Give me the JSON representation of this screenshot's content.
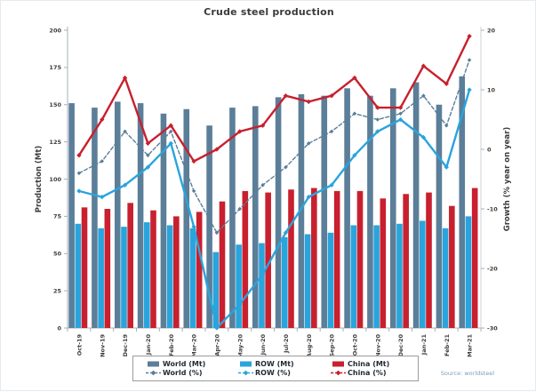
{
  "title": "Crude steel production",
  "source_note": "Source: worldsteel",
  "chart_data": {
    "type": "combo-bar-line",
    "grid": false,
    "legend_position": "bottom",
    "categories": [
      "Oct-19",
      "Nov-19",
      "Dec-19",
      "Jan-20",
      "Feb-20",
      "Mar-20",
      "Apr-20",
      "May-20",
      "Jun-20",
      "Jul-20",
      "Aug-20",
      "Sep-20",
      "Oct-20",
      "Nov-20",
      "Dec-20",
      "Jan-21",
      "Feb-21",
      "Mar-21"
    ],
    "axes": {
      "left": {
        "label": "Production (Mt)",
        "min": 0,
        "max": 200,
        "step": 25
      },
      "right": {
        "label": "Growth (% year on year)",
        "min": -30,
        "max": 20,
        "step": 10
      }
    },
    "series": [
      {
        "name": "World (Mt)",
        "type": "bar",
        "axis": "left",
        "color": "#5b7e99",
        "values": [
          151,
          148,
          152,
          151,
          144,
          147,
          136,
          148,
          149,
          155,
          157,
          156,
          161,
          156,
          161,
          165,
          150,
          169
        ]
      },
      {
        "name": "ROW (Mt)",
        "type": "bar",
        "axis": "left",
        "color": "#2aa4dc",
        "values": [
          70,
          67,
          68,
          71,
          69,
          67,
          51,
          56,
          57,
          61,
          63,
          64,
          69,
          69,
          70,
          72,
          67,
          75
        ]
      },
      {
        "name": "China (Mt)",
        "type": "bar",
        "axis": "left",
        "color": "#c8202e",
        "values": [
          81,
          80,
          84,
          79,
          75,
          78,
          85,
          92,
          91,
          93,
          94,
          92,
          92,
          87,
          90,
          91,
          82,
          94
        ]
      },
      {
        "name": "World (%)",
        "type": "line",
        "axis": "right",
        "style": "dashed",
        "color": "#5b7e99",
        "values": [
          -4,
          -2,
          3,
          -1,
          3,
          -7,
          -14,
          -10,
          -6,
          -3,
          1,
          3,
          6,
          5,
          6,
          9,
          4,
          15
        ]
      },
      {
        "name": "ROW (%)",
        "type": "line",
        "axis": "right",
        "style": "solid",
        "color": "#2aa4dc",
        "values": [
          -7,
          -8,
          -6,
          -3,
          1,
          -13,
          -30,
          -26,
          -21,
          -14,
          -8,
          -6,
          -1,
          3,
          5,
          2,
          -3,
          10
        ]
      },
      {
        "name": "China (%)",
        "type": "line",
        "axis": "right",
        "style": "solid",
        "color": "#c8202e",
        "values": [
          -1,
          5,
          12,
          1,
          4,
          -2,
          0,
          3,
          4,
          9,
          8,
          9,
          12,
          7,
          7,
          14,
          11,
          19
        ]
      }
    ]
  }
}
